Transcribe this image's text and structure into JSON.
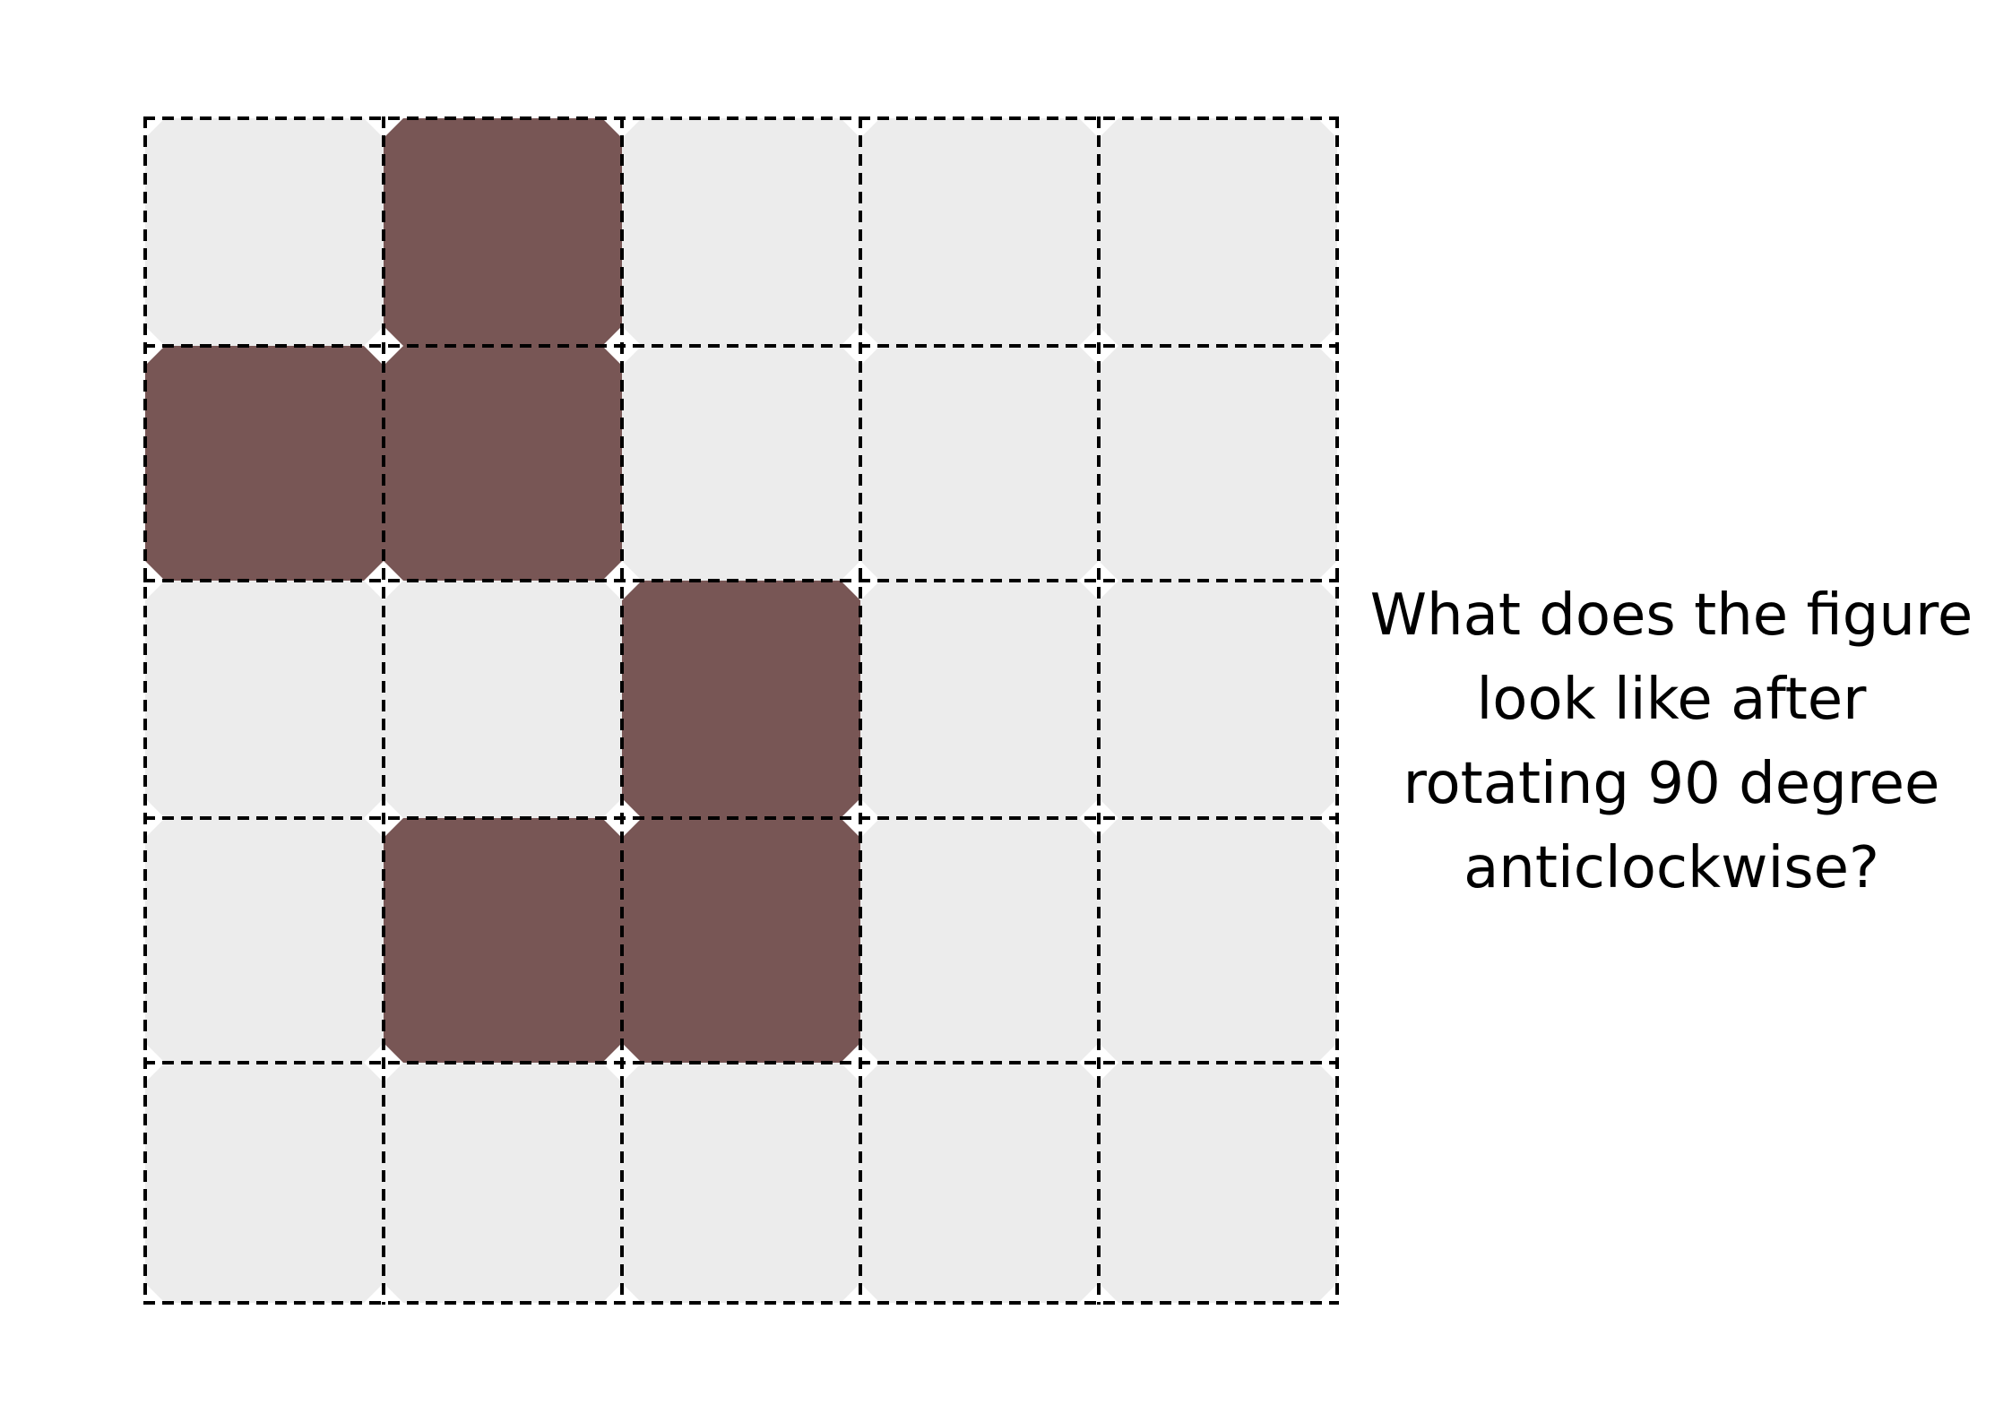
{
  "puzzle": {
    "rows": 5,
    "cols": 5,
    "filled_cells": [
      [
        0,
        1
      ],
      [
        1,
        0
      ],
      [
        1,
        1
      ],
      [
        2,
        2
      ],
      [
        3,
        1
      ],
      [
        3,
        2
      ]
    ],
    "colors": {
      "empty_cell": "#ececec",
      "filled_cell": "#785655",
      "grid_line": "#000000",
      "background": "#ffffff"
    }
  },
  "question": {
    "lines": [
      "What does the figure",
      "look like after",
      "rotating 90 degree",
      "anticlockwise?"
    ]
  }
}
